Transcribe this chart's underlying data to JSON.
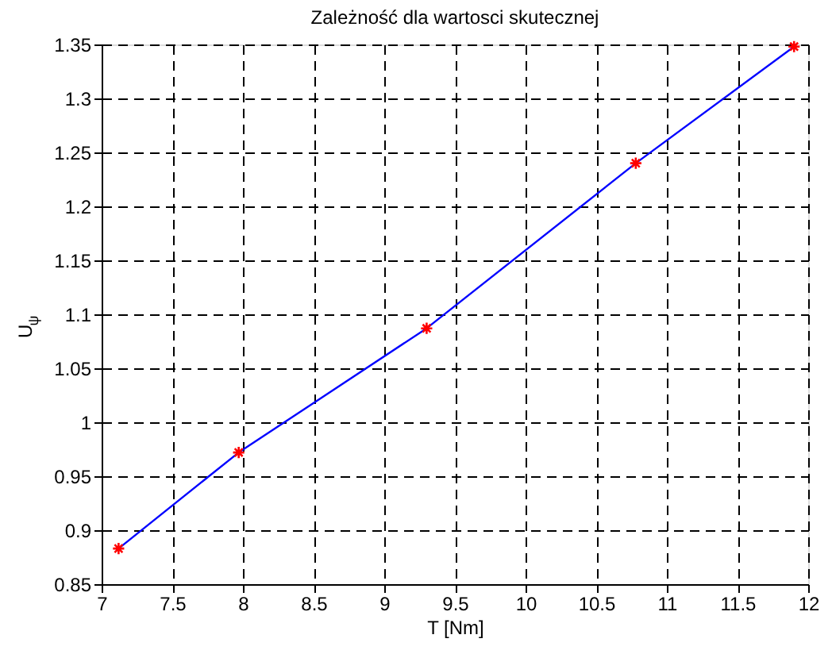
{
  "chart_data": {
    "type": "line",
    "title": "Zależność dla wartosci skutecznej",
    "xlabel": "T [Nm]",
    "ylabel": "U$_{ψ}$",
    "x": [
      7.12,
      7.97,
      9.3,
      10.78,
      11.9
    ],
    "series": [
      {
        "color": "#0000ff",
        "marker": "none",
        "line_style": "solid",
        "values": [
          0.883,
          0.972,
          1.087,
          1.24,
          1.348
        ]
      },
      {
        "type": "scatter",
        "color": "#ff0000",
        "marker": "cross",
        "values": [
          0.883,
          0.972,
          1.087,
          1.24,
          1.348
        ]
      }
    ],
    "xlim": [
      7,
      12
    ],
    "xticks": [
      7,
      7.5,
      8,
      8.5,
      9,
      9.5,
      10,
      10.5,
      11,
      11.5,
      12
    ],
    "ylim": [
      0.85,
      1.35
    ],
    "yticks": [
      0.85,
      0.9,
      0.95,
      1,
      1.05,
      1.1,
      1.15,
      1.2,
      1.25,
      1.3,
      1.35
    ],
    "grid": true
  }
}
